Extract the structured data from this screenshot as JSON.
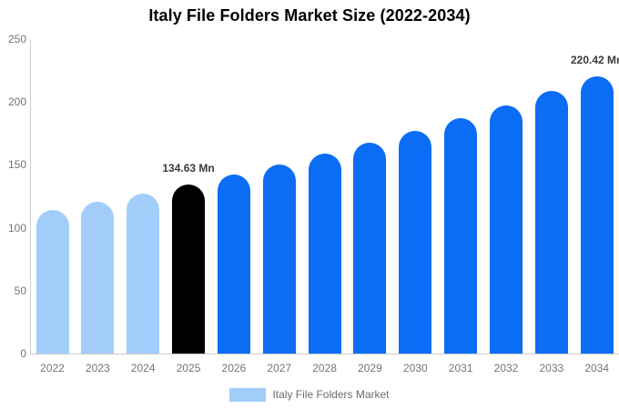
{
  "title": "Italy File Folders Market Size (2022-2034)",
  "y_axis": {
    "ticks": [
      0,
      50,
      100,
      150,
      200,
      250
    ],
    "min": 0,
    "max": 250
  },
  "legend": {
    "label": "Italy File Folders Market",
    "swatch_color": "#a2cdfa"
  },
  "colors": {
    "historical_bar": "#a2cdfa",
    "base_year_bar": "#000000",
    "forecast_bar": "#0b6cf5",
    "axis_line": "#cccccc",
    "tick_text": "#757575",
    "legend_text": "#6b6b6b",
    "data_label_text": "#3a3a3a",
    "title_text": "#000000",
    "background": "#ffffff"
  },
  "chart_data": {
    "type": "bar",
    "title": "Italy File Folders Market Size (2022-2034)",
    "unit": "Mn",
    "series_name": "Italy File Folders Market",
    "categories": [
      "2022",
      "2023",
      "2024",
      "2025",
      "2026",
      "2027",
      "2028",
      "2029",
      "2030",
      "2031",
      "2032",
      "2033",
      "2034"
    ],
    "values": [
      114.23,
      120.66,
      127.45,
      134.63,
      142.21,
      150.22,
      158.68,
      167.61,
      177.05,
      187.02,
      197.55,
      208.67,
      220.42
    ],
    "bar_colors": [
      "#a2cdfa",
      "#a2cdfa",
      "#a2cdfa",
      "#000000",
      "#0b6cf5",
      "#0b6cf5",
      "#0b6cf5",
      "#0b6cf5",
      "#0b6cf5",
      "#0b6cf5",
      "#0b6cf5",
      "#0b6cf5",
      "#0b6cf5"
    ],
    "data_labels": [
      {
        "index": 3,
        "text": "134.63 Mn"
      },
      {
        "index": 12,
        "text": "220.42 Mn"
      }
    ],
    "ylim": [
      0,
      250
    ],
    "grid": false,
    "legend_position": "bottom"
  }
}
